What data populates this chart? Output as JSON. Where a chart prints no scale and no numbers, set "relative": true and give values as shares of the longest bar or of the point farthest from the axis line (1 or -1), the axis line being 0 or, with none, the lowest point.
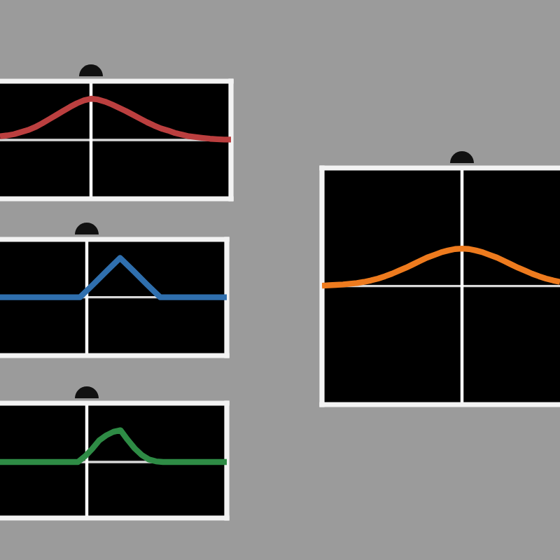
{
  "chart_data": [
    {
      "type": "line",
      "relative": true,
      "categories": [
        null,
        null,
        null,
        null,
        null,
        null,
        null,
        null,
        null,
        null,
        null,
        null,
        null,
        null,
        null,
        null,
        null,
        null,
        null,
        null,
        null,
        null,
        null,
        null,
        null,
        null,
        null,
        null,
        null,
        null,
        null,
        null,
        null,
        null
      ],
      "series": [
        {
          "color": "#bb3f3f",
          "values": [
            0.09,
            0.11,
            0.14,
            0.19,
            0.24,
            0.31,
            0.4,
            0.5,
            0.6,
            0.7,
            0.8,
            0.89,
            0.96,
            1.0,
            0.98,
            0.93,
            0.86,
            0.78,
            0.7,
            0.61,
            0.52,
            0.43,
            0.35,
            0.28,
            0.23,
            0.17,
            0.13,
            0.09,
            0.07,
            0.05,
            0.03,
            0.02,
            0.01,
            0.01
          ]
        }
      ]
    },
    {
      "type": "line",
      "relative": true,
      "categories": [
        null,
        null,
        null,
        null,
        null,
        null,
        null,
        null,
        null,
        null,
        null,
        null,
        null,
        null,
        null,
        null,
        null,
        null
      ],
      "series": [
        {
          "color": "#2f6fae",
          "values": [
            0,
            0,
            0,
            0,
            0,
            0,
            0,
            0.33,
            0.67,
            1,
            0.67,
            0.33,
            0,
            0,
            0,
            0,
            0,
            0
          ]
        }
      ]
    },
    {
      "type": "line",
      "relative": true,
      "categories": [
        null,
        null,
        null,
        null,
        null,
        null,
        null,
        null,
        null,
        null,
        null,
        null,
        null,
        null,
        null,
        null,
        null,
        null,
        null,
        null,
        null,
        null,
        null,
        null,
        null,
        null,
        null,
        null,
        null,
        null,
        null,
        null,
        null
      ],
      "series": [
        {
          "color": "#2e8b45",
          "values": [
            0,
            0,
            0,
            0,
            0,
            0,
            0,
            0,
            0,
            0,
            0,
            0,
            0.18,
            0.41,
            0.68,
            0.84,
            0.95,
            1.0,
            0.7,
            0.43,
            0.22,
            0.08,
            0.02,
            0,
            0,
            0,
            0,
            0,
            0,
            0,
            0,
            0,
            0
          ]
        }
      ]
    },
    {
      "type": "line",
      "relative": true,
      "categories": [
        null,
        null,
        null,
        null,
        null,
        null,
        null,
        null,
        null,
        null,
        null,
        null,
        null,
        null,
        null,
        null,
        null,
        null,
        null,
        null,
        null,
        null,
        null,
        null,
        null,
        null,
        null,
        null,
        null,
        null,
        null,
        null,
        null,
        null,
        null
      ],
      "series": [
        {
          "color": "#ee7b1e",
          "values": [
            0.01,
            0.02,
            0.03,
            0.04,
            0.06,
            0.08,
            0.11,
            0.15,
            0.2,
            0.26,
            0.33,
            0.41,
            0.49,
            0.58,
            0.67,
            0.76,
            0.83,
            0.9,
            0.95,
            0.99,
            1.0,
            0.99,
            0.95,
            0.9,
            0.83,
            0.76,
            0.67,
            0.58,
            0.49,
            0.41,
            0.33,
            0.26,
            0.2,
            0.15,
            0.11
          ]
        }
      ]
    }
  ]
}
